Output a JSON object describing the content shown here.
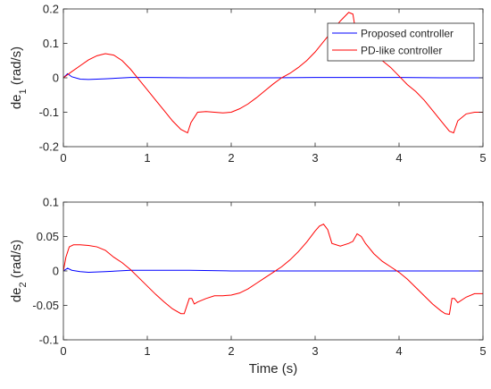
{
  "chart_data": [
    {
      "type": "line",
      "ylabel_main": "de",
      "ylabel_sub": "1",
      "ylabel_unit": " (rad/s)",
      "xlabel": "",
      "xlim": [
        0,
        5
      ],
      "ylim": [
        -0.2,
        0.2
      ],
      "xticks": [
        0,
        1,
        2,
        3,
        4,
        5
      ],
      "yticks": [
        -0.2,
        -0.1,
        0,
        0.1,
        0.2
      ],
      "xtick_labels": [
        "0",
        "1",
        "2",
        "3",
        "4",
        "5"
      ],
      "ytick_labels": [
        "-0.2",
        "-0.1",
        "0",
        "0.1",
        "0.2"
      ],
      "legend": "top-right",
      "grid": false,
      "series": [
        {
          "name": "Proposed controller",
          "color": "#0000ff",
          "x": [
            0,
            0.05,
            0.1,
            0.2,
            0.3,
            0.5,
            0.8,
            1.0,
            1.5,
            2.0,
            2.5,
            3.0,
            3.5,
            4.0,
            4.5,
            5.0
          ],
          "y": [
            0.0,
            0.012,
            0.003,
            -0.004,
            -0.005,
            -0.003,
            0.001,
            0.001,
            0.0,
            0.0,
            0.0,
            0.001,
            0.001,
            0.001,
            0.0,
            0.0
          ]
        },
        {
          "name": "PD-like controller",
          "color": "#ff0000",
          "x": [
            0,
            0.1,
            0.2,
            0.3,
            0.4,
            0.5,
            0.6,
            0.7,
            0.8,
            0.9,
            1.0,
            1.1,
            1.2,
            1.3,
            1.4,
            1.48,
            1.52,
            1.6,
            1.7,
            1.8,
            1.9,
            2.0,
            2.1,
            2.2,
            2.3,
            2.4,
            2.5,
            2.6,
            2.7,
            2.8,
            2.9,
            3.0,
            3.1,
            3.2,
            3.3,
            3.4,
            3.45,
            3.5,
            3.6,
            3.7,
            3.8,
            3.9,
            4.0,
            4.1,
            4.2,
            4.3,
            4.4,
            4.5,
            4.6,
            4.65,
            4.7,
            4.8,
            4.9,
            5.0
          ],
          "y": [
            0.0,
            0.018,
            0.035,
            0.052,
            0.064,
            0.07,
            0.066,
            0.05,
            0.025,
            -0.005,
            -0.035,
            -0.065,
            -0.095,
            -0.125,
            -0.15,
            -0.16,
            -0.13,
            -0.1,
            -0.098,
            -0.1,
            -0.102,
            -0.1,
            -0.09,
            -0.076,
            -0.058,
            -0.038,
            -0.018,
            0.0,
            0.013,
            0.03,
            0.05,
            0.075,
            0.105,
            0.135,
            0.165,
            0.19,
            0.185,
            0.11,
            0.085,
            0.067,
            0.05,
            0.03,
            0.005,
            -0.02,
            -0.04,
            -0.065,
            -0.095,
            -0.125,
            -0.155,
            -0.16,
            -0.125,
            -0.105,
            -0.1,
            -0.1
          ]
        }
      ]
    },
    {
      "type": "line",
      "ylabel_main": "de",
      "ylabel_sub": "2",
      "ylabel_unit": " (rad/s)",
      "xlabel": "Time (s)",
      "xlim": [
        0,
        5
      ],
      "ylim": [
        -0.1,
        0.1
      ],
      "xticks": [
        0,
        1,
        2,
        3,
        4,
        5
      ],
      "yticks": [
        -0.1,
        -0.05,
        0,
        0.05,
        0.1
      ],
      "xtick_labels": [
        "0",
        "1",
        "2",
        "3",
        "4",
        "5"
      ],
      "ytick_labels": [
        "-0.1",
        "-0.05",
        "0",
        "0.05",
        "0.1"
      ],
      "grid": false,
      "series": [
        {
          "color": "#0000ff",
          "x": [
            0,
            0.05,
            0.1,
            0.2,
            0.3,
            0.5,
            0.8,
            1.0,
            1.5,
            2.0,
            2.5,
            3.0,
            3.5,
            4.0,
            4.5,
            5.0
          ],
          "y": [
            0.0,
            0.004,
            0.001,
            -0.001,
            -0.002,
            -0.001,
            0.001,
            0.001,
            0.001,
            0.0,
            0.0,
            0.0,
            0.0,
            0.0,
            0.0,
            0.0
          ]
        },
        {
          "color": "#ff0000",
          "x": [
            0,
            0.03,
            0.07,
            0.12,
            0.2,
            0.3,
            0.4,
            0.5,
            0.6,
            0.7,
            0.8,
            0.9,
            1.0,
            1.1,
            1.2,
            1.3,
            1.4,
            1.44,
            1.5,
            1.53,
            1.56,
            1.6,
            1.7,
            1.8,
            1.9,
            2.0,
            2.1,
            2.2,
            2.3,
            2.4,
            2.5,
            2.6,
            2.7,
            2.8,
            2.9,
            3.0,
            3.05,
            3.1,
            3.15,
            3.2,
            3.3,
            3.4,
            3.45,
            3.5,
            3.55,
            3.6,
            3.7,
            3.8,
            3.9,
            4.0,
            4.1,
            4.2,
            4.3,
            4.4,
            4.5,
            4.55,
            4.6,
            4.63,
            4.66,
            4.7,
            4.8,
            4.9,
            5.0
          ],
          "y": [
            0.0,
            0.02,
            0.035,
            0.038,
            0.038,
            0.037,
            0.035,
            0.03,
            0.02,
            0.012,
            0.002,
            -0.01,
            -0.022,
            -0.034,
            -0.045,
            -0.055,
            -0.062,
            -0.062,
            -0.04,
            -0.04,
            -0.048,
            -0.045,
            -0.04,
            -0.036,
            -0.036,
            -0.035,
            -0.032,
            -0.026,
            -0.018,
            -0.01,
            -0.002,
            0.006,
            0.016,
            0.028,
            0.042,
            0.058,
            0.065,
            0.068,
            0.06,
            0.04,
            0.036,
            0.04,
            0.043,
            0.054,
            0.05,
            0.04,
            0.025,
            0.014,
            0.006,
            -0.002,
            -0.012,
            -0.024,
            -0.036,
            -0.048,
            -0.058,
            -0.062,
            -0.063,
            -0.04,
            -0.04,
            -0.046,
            -0.038,
            -0.033,
            -0.033
          ]
        }
      ]
    }
  ]
}
